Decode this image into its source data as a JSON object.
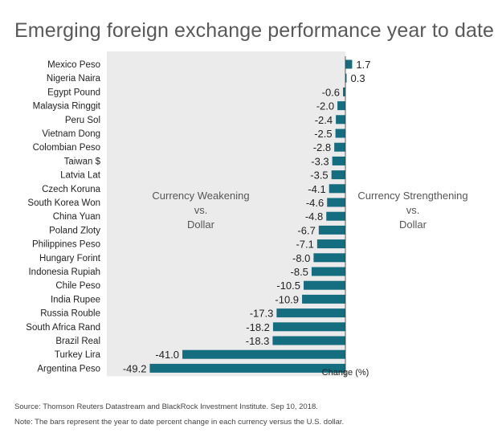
{
  "title": "Emerging foreign exchange performance year to date",
  "source": "Source: Thomson Reuters Datastream and BlackRock Investment Institute. Sep 10, 2018.",
  "note": "Note: The bars represent the year to date percent change in each currency versus the U.S. dollar.",
  "colors": {
    "bar": "#156D80",
    "shade": "#EBEBEB",
    "axis": "#333333"
  },
  "chart_data": {
    "type": "bar",
    "orientation": "horizontal",
    "title": "Emerging foreign exchange performance year to date",
    "xlabel": "Change (%)",
    "ylabel": "",
    "xlim": [
      -49.2,
      1.7
    ],
    "grid": false,
    "categories": [
      "Mexico Peso",
      "Nigeria Naira",
      "Egypt Pound",
      "Malaysia Ringgit",
      "Peru Sol",
      "Vietnam Dong",
      "Colombian Peso",
      "Taiwan $",
      "Latvia Lat",
      "Czech Koruna",
      "South Korea Won",
      "China Yuan",
      "Poland Zloty",
      "Philippines Peso",
      "Hungary Forint",
      "Indonesia Rupiah",
      "Chile Peso",
      "India Rupee",
      "Russia Rouble",
      "South Africa Rand",
      "Brazil Real",
      "Turkey Lira",
      "Argentina Peso"
    ],
    "values": [
      1.7,
      0.3,
      -0.6,
      -2.0,
      -2.4,
      -2.5,
      -2.8,
      -3.3,
      -3.5,
      -4.1,
      -4.6,
      -4.8,
      -6.7,
      -7.1,
      -8.0,
      -8.5,
      -10.5,
      -10.9,
      -17.3,
      -18.2,
      -18.3,
      -41.0,
      -49.2
    ],
    "value_labels": [
      "1.7",
      "0.3",
      "-0.6",
      "-2.0",
      "-2.4",
      "-2.5",
      "-2.8",
      "-3.3",
      "-3.5",
      "-4.1",
      "-4.6",
      "-4.8",
      "-6.7",
      "-7.1",
      "-8.0",
      "-8.5",
      "-10.5",
      "-10.9",
      "-17.3",
      "-18.2",
      "-18.3",
      "-41.0",
      "-49.2"
    ],
    "annotations": {
      "left": [
        "Currency Weakening",
        "vs.",
        "Dollar"
      ],
      "right": [
        "Currency Strengthening",
        "vs.",
        "Dollar"
      ]
    }
  }
}
